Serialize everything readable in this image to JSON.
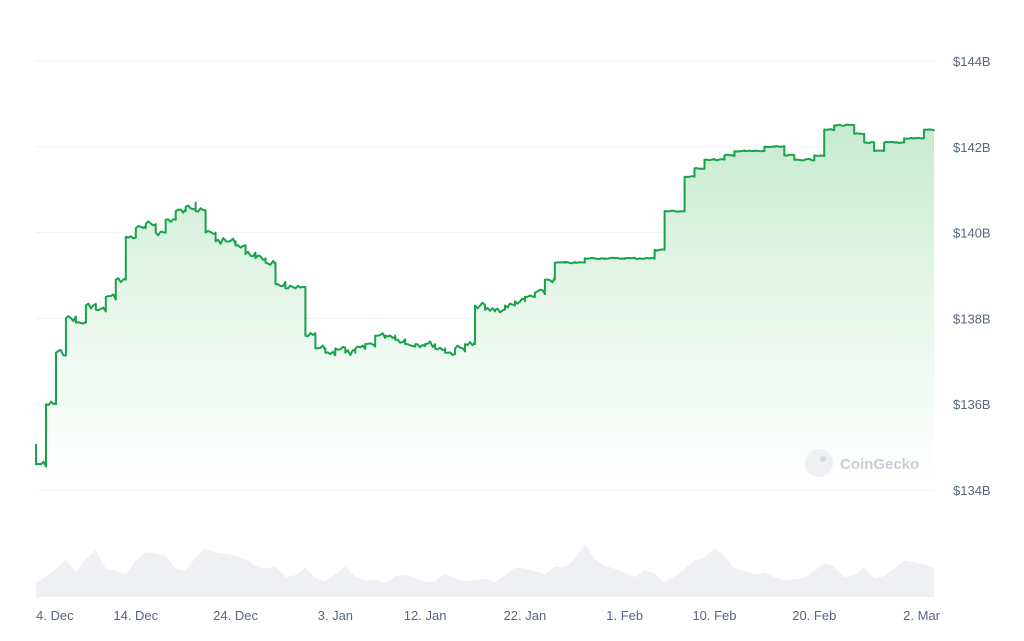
{
  "watermark": "CoinGecko",
  "colors": {
    "line": "#16a34a",
    "area_top": "#bfe8c9",
    "area_bottom": "#ffffff",
    "volume": "#eef0f3",
    "grid": "#eff2f5",
    "text": "#58667e"
  },
  "chart_data": {
    "type": "area",
    "title": "",
    "xlabel": "",
    "ylabel": "",
    "ylim": [
      133.5,
      144.8
    ],
    "y_ticks": [
      {
        "value": 144,
        "label": "$144B"
      },
      {
        "value": 142,
        "label": "$142B"
      },
      {
        "value": 140,
        "label": "$140B"
      },
      {
        "value": 138,
        "label": "$138B"
      },
      {
        "value": 136,
        "label": "$136B"
      },
      {
        "value": 134,
        "label": "$134B"
      }
    ],
    "x_range": [
      "2023-12-04",
      "2024-03-03"
    ],
    "x_ticks": [
      {
        "date": "2023-12-04",
        "label": "4. Dec"
      },
      {
        "date": "2023-12-14",
        "label": "14. Dec"
      },
      {
        "date": "2023-12-24",
        "label": "24. Dec"
      },
      {
        "date": "2024-01-03",
        "label": "3. Jan"
      },
      {
        "date": "2024-01-12",
        "label": "12. Jan"
      },
      {
        "date": "2024-01-22",
        "label": "22. Jan"
      },
      {
        "date": "2024-02-01",
        "label": "1. Feb"
      },
      {
        "date": "2024-02-10",
        "label": "10. Feb"
      },
      {
        "date": "2024-02-20",
        "label": "20. Feb"
      },
      {
        "date": "2024-03-02",
        "label": "2. Mar"
      }
    ],
    "grid": true,
    "series": [
      {
        "points": [
          [
            "2023-12-04",
            135.0
          ],
          [
            "2023-12-04",
            134.6
          ],
          [
            "2023-12-05",
            135.6
          ],
          [
            "2023-12-05",
            136.0
          ],
          [
            "2023-12-06",
            136.8
          ],
          [
            "2023-12-06",
            137.2
          ],
          [
            "2023-12-07",
            138.0
          ],
          [
            "2023-12-08",
            137.9
          ],
          [
            "2023-12-09",
            138.3
          ],
          [
            "2023-12-10",
            138.2
          ],
          [
            "2023-12-11",
            138.5
          ],
          [
            "2023-12-12",
            138.9
          ],
          [
            "2023-12-13",
            139.9
          ],
          [
            "2023-12-14",
            140.1
          ],
          [
            "2023-12-15",
            140.2
          ],
          [
            "2023-12-16",
            140.0
          ],
          [
            "2023-12-17",
            140.3
          ],
          [
            "2023-12-18",
            140.5
          ],
          [
            "2023-12-19",
            140.6
          ],
          [
            "2023-12-20",
            140.7
          ],
          [
            "2023-12-20",
            140.5
          ],
          [
            "2023-12-21",
            140.0
          ],
          [
            "2023-12-22",
            139.8
          ],
          [
            "2023-12-23",
            139.8
          ],
          [
            "2023-12-24",
            139.7
          ],
          [
            "2023-12-25",
            139.5
          ],
          [
            "2023-12-26",
            139.4
          ],
          [
            "2023-12-27",
            139.3
          ],
          [
            "2023-12-28",
            139.2
          ],
          [
            "2023-12-28",
            138.8
          ],
          [
            "2023-12-29",
            138.7
          ],
          [
            "2023-12-30",
            138.7
          ],
          [
            "2023-12-31",
            138.6
          ],
          [
            "2023-12-31",
            137.6
          ],
          [
            "2024-01-01",
            137.3
          ],
          [
            "2024-01-02",
            137.2
          ],
          [
            "2024-01-03",
            137.3
          ],
          [
            "2024-01-04",
            137.2
          ],
          [
            "2024-01-05",
            137.3
          ],
          [
            "2024-01-06",
            137.4
          ],
          [
            "2024-01-07",
            137.6
          ],
          [
            "2024-01-08",
            137.6
          ],
          [
            "2024-01-09",
            137.5
          ],
          [
            "2024-01-10",
            137.4
          ],
          [
            "2024-01-11",
            137.4
          ],
          [
            "2024-01-12",
            137.4
          ],
          [
            "2024-01-13",
            137.3
          ],
          [
            "2024-01-14",
            137.2
          ],
          [
            "2024-01-15",
            137.3
          ],
          [
            "2024-01-16",
            137.4
          ],
          [
            "2024-01-17",
            137.5
          ],
          [
            "2024-01-17",
            138.3
          ],
          [
            "2024-01-18",
            138.2
          ],
          [
            "2024-01-19",
            138.2
          ],
          [
            "2024-01-20",
            138.3
          ],
          [
            "2024-01-21",
            138.4
          ],
          [
            "2024-01-22",
            138.5
          ],
          [
            "2024-01-23",
            138.6
          ],
          [
            "2024-01-24",
            138.9
          ],
          [
            "2024-01-25",
            139.3
          ],
          [
            "2024-01-26",
            139.3
          ],
          [
            "2024-01-27",
            139.3
          ],
          [
            "2024-01-28",
            139.4
          ],
          [
            "2024-01-29",
            139.4
          ],
          [
            "2024-01-30",
            139.4
          ],
          [
            "2024-01-31",
            139.4
          ],
          [
            "2024-02-01",
            139.4
          ],
          [
            "2024-02-02",
            139.4
          ],
          [
            "2024-02-03",
            139.4
          ],
          [
            "2024-02-04",
            139.6
          ],
          [
            "2024-02-05",
            140.5
          ],
          [
            "2024-02-06",
            140.5
          ],
          [
            "2024-02-07",
            141.3
          ],
          [
            "2024-02-08",
            141.5
          ],
          [
            "2024-02-09",
            141.7
          ],
          [
            "2024-02-10",
            141.7
          ],
          [
            "2024-02-11",
            141.8
          ],
          [
            "2024-02-12",
            141.9
          ],
          [
            "2024-02-13",
            141.9
          ],
          [
            "2024-02-14",
            141.9
          ],
          [
            "2024-02-15",
            142.0
          ],
          [
            "2024-02-16",
            142.0
          ],
          [
            "2024-02-17",
            141.8
          ],
          [
            "2024-02-18",
            141.7
          ],
          [
            "2024-02-19",
            141.7
          ],
          [
            "2024-02-20",
            141.8
          ],
          [
            "2024-02-21",
            142.0
          ],
          [
            "2024-02-21",
            142.4
          ],
          [
            "2024-02-22",
            142.5
          ],
          [
            "2024-02-23",
            142.5
          ],
          [
            "2024-02-24",
            142.3
          ],
          [
            "2024-02-25",
            142.1
          ],
          [
            "2024-02-26",
            141.9
          ],
          [
            "2024-02-27",
            142.1
          ],
          [
            "2024-02-28",
            142.1
          ],
          [
            "2024-02-29",
            142.2
          ],
          [
            "2024-03-01",
            142.2
          ],
          [
            "2024-03-02",
            142.4
          ],
          [
            "2024-03-03",
            142.4
          ]
        ]
      }
    ],
    "volume": [
      3,
      4,
      5,
      6,
      5,
      7,
      8,
      6,
      5,
      4,
      6,
      9,
      8,
      7,
      6,
      5,
      7,
      8,
      9,
      8,
      7,
      8,
      6,
      5,
      5,
      4,
      4,
      5,
      4,
      3,
      4,
      5,
      4,
      3,
      3,
      3,
      4,
      4,
      3,
      3,
      3,
      4,
      4,
      3,
      3,
      3,
      3,
      4,
      5,
      6,
      5,
      4,
      5,
      6,
      7,
      9,
      8,
      6,
      5,
      4,
      4,
      5,
      4,
      3,
      4,
      5,
      6,
      8,
      9,
      7,
      6,
      5,
      4,
      4,
      4,
      3,
      3,
      4,
      5,
      6,
      5,
      4,
      4,
      5,
      4,
      4,
      5,
      6,
      7,
      6,
      5
    ]
  }
}
